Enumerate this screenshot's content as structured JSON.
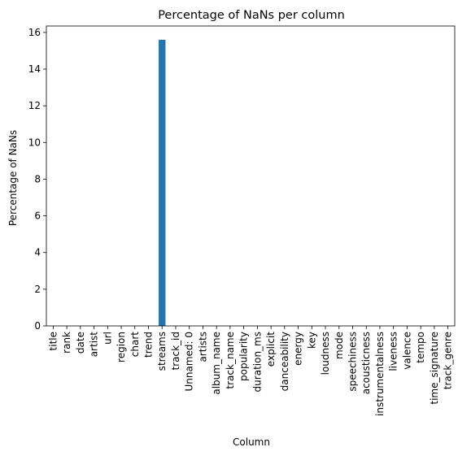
{
  "chart_data": {
    "type": "bar",
    "title": "Percentage of NaNs per column",
    "xlabel": "Column",
    "ylabel": "Percentage of NaNs",
    "ylim": [
      0,
      16.35
    ],
    "yticks": [
      0,
      2,
      4,
      6,
      8,
      10,
      12,
      14,
      16
    ],
    "grid": false,
    "bar_color": "#1f77b4",
    "categories": [
      "title",
      "rank",
      "date",
      "artist",
      "url",
      "region",
      "chart",
      "trend",
      "streams",
      "track_id",
      "Unnamed: 0",
      "artists",
      "album_name",
      "track_name",
      "popularity",
      "duration_ms",
      "explicit",
      "danceability",
      "energy",
      "key",
      "loudness",
      "mode",
      "speechiness",
      "acousticness",
      "instrumentalness",
      "liveness",
      "valence",
      "tempo",
      "time_signature",
      "track_genre"
    ],
    "values": [
      0,
      0,
      0,
      0,
      0,
      0,
      0,
      0,
      15.6,
      0,
      0,
      0,
      0,
      0,
      0,
      0,
      0,
      0,
      0,
      0,
      0,
      0,
      0,
      0,
      0,
      0,
      0,
      0,
      0,
      0
    ]
  }
}
